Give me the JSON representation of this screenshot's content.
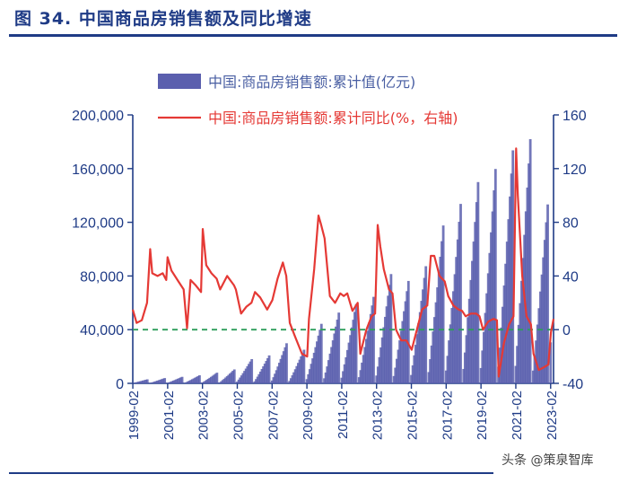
{
  "figure": {
    "title": "图 34. 中国商品房销售额及同比增速",
    "watermark": "头条 @策泉智库"
  },
  "chart_data": {
    "type": "bar+line",
    "title": "图 34. 中国商品房销售额及同比增速",
    "legend": [
      {
        "name": "中国:商品房销售额:累计值(亿元)",
        "mark": "bar",
        "color": "#5b5fae"
      },
      {
        "name": "中国:商品房销售额:累计同比(%，右轴)",
        "mark": "line",
        "color": "#e53935"
      }
    ],
    "left_axis": {
      "min": 0,
      "max": 200000,
      "ticks": [
        0,
        40000,
        80000,
        120000,
        160000,
        200000
      ],
      "tick_labels": [
        "0",
        "40,000",
        "80,000",
        "120,000",
        "160,000",
        "200,000"
      ]
    },
    "right_axis": {
      "min": -40,
      "max": 160,
      "ticks": [
        -40,
        0,
        40,
        80,
        120,
        160
      ],
      "tick_labels": [
        "-40",
        "0",
        "40",
        "80",
        "120",
        "160"
      ]
    },
    "x_axis": {
      "start": 1999.08,
      "end": 2023.25,
      "tick_labels": [
        "1999-02",
        "2001-02",
        "2003-02",
        "2005-02",
        "2007-02",
        "2009-02",
        "2011-02",
        "2013-02",
        "2015-02",
        "2017-02",
        "2019-02",
        "2021-02",
        "2023-02"
      ]
    },
    "reference_line": {
      "axis": "right",
      "value": 0,
      "color": "#2e9e5b",
      "style": "dashed"
    },
    "series": [
      {
        "name": "中国:商品房销售额:累计值(亿元)",
        "axis": "left",
        "annual_totals": [
          {
            "year": 1999,
            "value": 2988
          },
          {
            "year": 2000,
            "value": 3935
          },
          {
            "year": 2001,
            "value": 4863
          },
          {
            "year": 2002,
            "value": 6032
          },
          {
            "year": 2003,
            "value": 7956
          },
          {
            "year": 2004,
            "value": 10376
          },
          {
            "year": 2005,
            "value": 18080
          },
          {
            "year": 2006,
            "value": 20826
          },
          {
            "year": 2007,
            "value": 29889
          },
          {
            "year": 2008,
            "value": 25068
          },
          {
            "year": 2009,
            "value": 44355
          },
          {
            "year": 2010,
            "value": 52721
          },
          {
            "year": 2011,
            "value": 59119
          },
          {
            "year": 2012,
            "value": 64456
          },
          {
            "year": 2013,
            "value": 81428
          },
          {
            "year": 2014,
            "value": 76292
          },
          {
            "year": 2015,
            "value": 87281
          },
          {
            "year": 2016,
            "value": 117627
          },
          {
            "year": 2017,
            "value": 133701
          },
          {
            "year": 2018,
            "value": 149973
          },
          {
            "year": 2019,
            "value": 159725
          },
          {
            "year": 2020,
            "value": 173613
          },
          {
            "year": 2021,
            "value": 181930
          },
          {
            "year": 2022,
            "value": 133308
          },
          {
            "year": 2023,
            "value": 30545
          }
        ]
      },
      {
        "name": "中国:商品房销售额:累计同比(%，右轴)",
        "axis": "right",
        "points": [
          [
            1999.08,
            15
          ],
          [
            1999.3,
            5
          ],
          [
            1999.6,
            7
          ],
          [
            1999.9,
            20
          ],
          [
            2000.08,
            60
          ],
          [
            2000.2,
            42
          ],
          [
            2000.5,
            40
          ],
          [
            2000.8,
            42
          ],
          [
            2001.0,
            37
          ],
          [
            2001.08,
            54
          ],
          [
            2001.3,
            44
          ],
          [
            2001.7,
            36
          ],
          [
            2002.0,
            30
          ],
          [
            2002.2,
            1
          ],
          [
            2002.4,
            37
          ],
          [
            2002.7,
            33
          ],
          [
            2003.0,
            28
          ],
          [
            2003.1,
            75
          ],
          [
            2003.3,
            48
          ],
          [
            2003.6,
            42
          ],
          [
            2003.9,
            38
          ],
          [
            2004.1,
            30
          ],
          [
            2004.5,
            40
          ],
          [
            2004.9,
            33
          ],
          [
            2005.0,
            30
          ],
          [
            2005.3,
            12
          ],
          [
            2005.6,
            17
          ],
          [
            2005.9,
            20
          ],
          [
            2006.1,
            28
          ],
          [
            2006.4,
            24
          ],
          [
            2006.8,
            15
          ],
          [
            2007.1,
            22
          ],
          [
            2007.4,
            38
          ],
          [
            2007.7,
            50
          ],
          [
            2007.9,
            40
          ],
          [
            2008.1,
            5
          ],
          [
            2008.4,
            -5
          ],
          [
            2008.8,
            -18
          ],
          [
            2009.1,
            -20
          ],
          [
            2009.2,
            8
          ],
          [
            2009.5,
            45
          ],
          [
            2009.75,
            85
          ],
          [
            2009.9,
            78
          ],
          [
            2010.1,
            68
          ],
          [
            2010.4,
            25
          ],
          [
            2010.7,
            20
          ],
          [
            2011.0,
            27
          ],
          [
            2011.2,
            25
          ],
          [
            2011.4,
            27
          ],
          [
            2011.7,
            14
          ],
          [
            2012.0,
            20
          ],
          [
            2012.15,
            -18
          ],
          [
            2012.5,
            0
          ],
          [
            2012.8,
            10
          ],
          [
            2013.0,
            12
          ],
          [
            2013.15,
            78
          ],
          [
            2013.3,
            62
          ],
          [
            2013.5,
            45
          ],
          [
            2013.8,
            30
          ],
          [
            2014.0,
            27
          ],
          [
            2014.2,
            0
          ],
          [
            2014.5,
            -8
          ],
          [
            2014.8,
            -8
          ],
          [
            2015.1,
            -15
          ],
          [
            2015.4,
            0
          ],
          [
            2015.7,
            15
          ],
          [
            2016.0,
            18
          ],
          [
            2016.2,
            55
          ],
          [
            2016.4,
            55
          ],
          [
            2016.7,
            40
          ],
          [
            2017.0,
            36
          ],
          [
            2017.2,
            25
          ],
          [
            2017.5,
            18
          ],
          [
            2017.8,
            15
          ],
          [
            2018.0,
            14
          ],
          [
            2018.2,
            10
          ],
          [
            2018.5,
            12
          ],
          [
            2018.8,
            12
          ],
          [
            2019.0,
            10
          ],
          [
            2019.2,
            0
          ],
          [
            2019.5,
            6
          ],
          [
            2019.8,
            8
          ],
          [
            2020.0,
            7
          ],
          [
            2020.1,
            -35
          ],
          [
            2020.4,
            -10
          ],
          [
            2020.7,
            4
          ],
          [
            2020.95,
            10
          ],
          [
            2021.1,
            135
          ],
          [
            2021.2,
            100
          ],
          [
            2021.45,
            40
          ],
          [
            2021.7,
            10
          ],
          [
            2021.95,
            4
          ],
          [
            2022.1,
            -18
          ],
          [
            2022.4,
            -30
          ],
          [
            2022.7,
            -28
          ],
          [
            2022.95,
            -26
          ],
          [
            2023.1,
            -2
          ],
          [
            2023.25,
            8
          ]
        ]
      }
    ]
  }
}
